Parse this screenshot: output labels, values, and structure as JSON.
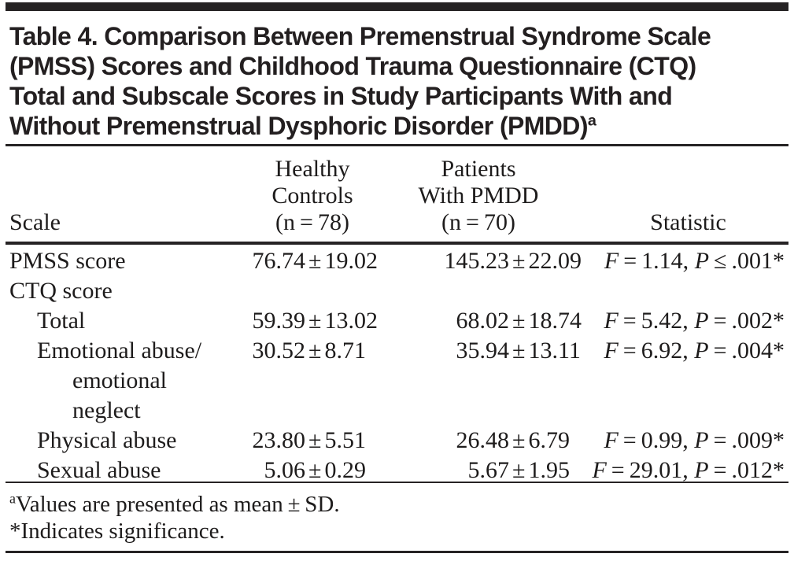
{
  "title": {
    "lines": [
      "Table 4. Comparison Between Premenstrual Syndrome Scale",
      "(PMSS) Scores and Childhood Trauma Questionnaire (CTQ)",
      "Total and Subscale Scores in Study Participants With and",
      "Without Premenstrual Dysphoric Disorder (PMDD)"
    ],
    "superscript": "a"
  },
  "table": {
    "columns": {
      "scale": "Scale",
      "healthy": [
        "Healthy",
        "Controls",
        "(n = 78)"
      ],
      "pmdd": [
        "Patients",
        "With PMDD",
        "(n = 70)"
      ],
      "statistic": "Statistic"
    },
    "rows": [
      {
        "label": "PMSS score",
        "indent": 0,
        "healthy": {
          "mean": "76.74",
          "sd": "19.02"
        },
        "pmdd": {
          "mean": "145.23",
          "sd": "22.09"
        },
        "stat": {
          "f": "1.14",
          "p_op": "≤",
          "p": ".001",
          "sig": "*"
        }
      },
      {
        "label": "CTQ score",
        "indent": 0,
        "healthy": null,
        "pmdd": null,
        "stat": null
      },
      {
        "label": "Total",
        "indent": 1,
        "healthy": {
          "mean": "59.39",
          "sd": "13.02"
        },
        "pmdd": {
          "mean": "68.02",
          "sd": "18.74"
        },
        "stat": {
          "f": "5.42",
          "p_op": "=",
          "p": ".002",
          "sig": "*"
        }
      },
      {
        "label": "Emotional abuse/ emotional neglect",
        "indent": 1,
        "hanging": true,
        "healthy": {
          "mean": "30.52",
          "sd": "8.71"
        },
        "pmdd": {
          "mean": "35.94",
          "sd": "13.11"
        },
        "stat": {
          "f": "6.92",
          "p_op": "=",
          "p": ".004",
          "sig": "*"
        }
      },
      {
        "label": "Physical abuse",
        "indent": 1,
        "healthy": {
          "mean": "23.80",
          "sd": "5.51"
        },
        "pmdd": {
          "mean": "26.48",
          "sd": "6.79"
        },
        "stat": {
          "f": "0.99",
          "p_op": "=",
          "p": ".009",
          "sig": "*"
        }
      },
      {
        "label": "Sexual abuse",
        "indent": 1,
        "healthy": {
          "mean": "5.06",
          "sd": "0.29"
        },
        "pmdd": {
          "mean": "5.67",
          "sd": "1.95"
        },
        "stat": {
          "f": "29.01",
          "p_op": "=",
          "p": ".012",
          "sig": "*"
        }
      }
    ],
    "plus_minus": "±",
    "f_symbol": "F",
    "p_symbol": "P"
  },
  "footnotes": [
    {
      "marker": "a",
      "superscript": true,
      "text": "Values are presented as mean ± SD."
    },
    {
      "marker": "*",
      "superscript": false,
      "text": "Indicates significance."
    }
  ],
  "colors": {
    "text": "#1e1c1c",
    "title": "#231f20",
    "rule": "#262324",
    "background": "#ffffff"
  }
}
